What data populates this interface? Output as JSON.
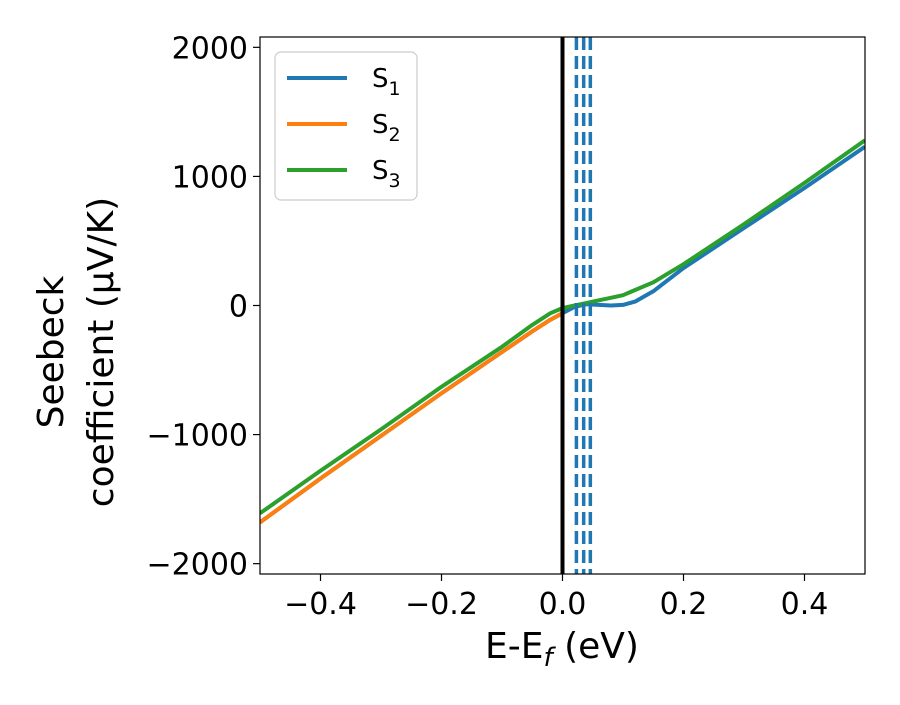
{
  "chart_data": {
    "type": "line",
    "xlabel_main": "E-E",
    "xlabel_sub": "f",
    "xlabel_unit": " (eV)",
    "ylabel_line1": "Seebeck",
    "ylabel_line2": "coefficient  (μV/K)",
    "xlim": [
      -0.5,
      0.5
    ],
    "ylim": [
      -2080,
      2080
    ],
    "xticks": [
      -0.4,
      -0.2,
      0.0,
      0.2,
      0.4
    ],
    "xtick_labels": [
      "−0.4",
      "−0.2",
      "0.0",
      "0.2",
      "0.4"
    ],
    "yticks": [
      -2000,
      -1000,
      0,
      1000,
      2000
    ],
    "ytick_labels": [
      "−2000",
      "−1000",
      "0",
      "1000",
      "2000"
    ],
    "legend_position": "top-left",
    "grid": false,
    "vertical_lines": [
      {
        "x": 0.0,
        "style": "solid",
        "color": "#000000"
      },
      {
        "x": 0.023,
        "style": "dashed",
        "color": "#1f77b4"
      },
      {
        "x": 0.035,
        "style": "dashed",
        "color": "#1f77b4"
      },
      {
        "x": 0.046,
        "style": "dashed",
        "color": "#1f77b4"
      }
    ],
    "series": [
      {
        "name": "S",
        "sub": "1",
        "color": "#1f77b4",
        "x": [
          -0.5,
          -0.4,
          -0.3,
          -0.2,
          -0.1,
          -0.05,
          -0.02,
          0.0,
          0.02,
          0.04,
          0.06,
          0.08,
          0.1,
          0.12,
          0.15,
          0.2,
          0.3,
          0.4,
          0.5
        ],
        "y": [
          -1680,
          -1340,
          -1010,
          -680,
          -360,
          -200,
          -110,
          -60,
          -10,
          10,
          5,
          0,
          5,
          30,
          110,
          290,
          600,
          910,
          1230
        ]
      },
      {
        "name": "S",
        "sub": "2",
        "color": "#ff7f0e",
        "x": [
          -0.5,
          -0.4,
          -0.3,
          -0.2,
          -0.1,
          -0.05,
          -0.02,
          0.0
        ],
        "y": [
          -1680,
          -1340,
          -1010,
          -680,
          -360,
          -200,
          -110,
          -60
        ]
      },
      {
        "name": "S",
        "sub": "3",
        "color": "#2ca02c",
        "x": [
          -0.5,
          -0.4,
          -0.3,
          -0.2,
          -0.1,
          -0.05,
          -0.02,
          0.0,
          0.02,
          0.04,
          0.06,
          0.08,
          0.1,
          0.12,
          0.15,
          0.2,
          0.3,
          0.4,
          0.5
        ],
        "y": [
          -1610,
          -1280,
          -960,
          -630,
          -320,
          -150,
          -60,
          -20,
          0,
          20,
          40,
          60,
          80,
          120,
          180,
          320,
          630,
          950,
          1280
        ]
      }
    ]
  }
}
